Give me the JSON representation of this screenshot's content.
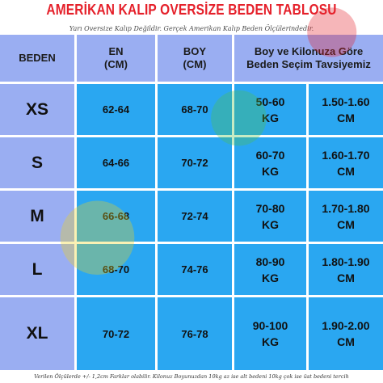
{
  "title": "AMERİKAN KALIP OVERSİZE BEDEN TABLOSU",
  "subtitle": "Yarı Oversize Kalıp Değildir. Gerçek Amerikan Kalıp Beden Ölçülerindedir.",
  "colors": {
    "title": "#e5202a",
    "label_column": "#9aaef2",
    "value_cells": "#2aa7f1",
    "grid_lines": "#ffffff"
  },
  "headers": {
    "size": "BEDEN",
    "width_line1": "EN",
    "width_line2": "(CM)",
    "height_line1": "BOY",
    "height_line2": "(CM)",
    "recommendation_line1": "Boy ve Kilonuza Göre",
    "recommendation_line2": "Beden Seçim Tavsiyemiz"
  },
  "rows": [
    {
      "size": "XS",
      "width": "62-64",
      "length": "68-70",
      "weight_1": "50-60",
      "weight_2": "KG",
      "height_1": "1.50-1.60",
      "height_2": "CM"
    },
    {
      "size": "S",
      "width": "64-66",
      "length": "70-72",
      "weight_1": "60-70",
      "weight_2": "KG",
      "height_1": "1.60-1.70",
      "height_2": "CM"
    },
    {
      "size": "M",
      "width": "66-68",
      "length": "72-74",
      "weight_1": "70-80",
      "weight_2": "KG",
      "height_1": "1.70-1.80",
      "height_2": "CM"
    },
    {
      "size": "L",
      "width": "68-70",
      "length": "74-76",
      "weight_1": "80-90",
      "weight_2": "KG",
      "height_1": "1.80-1.90",
      "height_2": "CM"
    },
    {
      "size": "XL",
      "width": "70-72",
      "length": "76-78",
      "weight_1": "90-100",
      "weight_2": "KG",
      "height_1": "1.90-2.00",
      "height_2": "CM"
    }
  ],
  "footer": "Verilen Ölçülerde +/- 1,2cm Farklar olabilir. Kilonuz Boyunuzdan 10kg az ise alt bedeni 10kg çok ise üst bedeni tercih"
}
